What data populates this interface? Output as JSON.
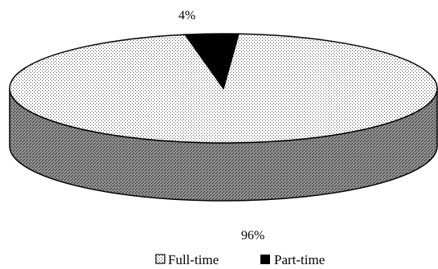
{
  "chart_data": {
    "type": "pie",
    "style": "3d",
    "categories": [
      "Full-time",
      "Part-time"
    ],
    "values": [
      96,
      4
    ],
    "data_labels": [
      "96%",
      "4%"
    ],
    "legend": {
      "placement": "bottom",
      "entries": [
        {
          "name": "Full-time",
          "pattern": "dotted"
        },
        {
          "name": "Part-time",
          "color": "#000000"
        }
      ]
    },
    "colors": {
      "full_time_fill": "#ffffff",
      "full_time_dots": "#555555",
      "side_fill": "#8c8c8c",
      "side_dots": "#2a2a2a",
      "part_time_fill": "#000000"
    }
  }
}
